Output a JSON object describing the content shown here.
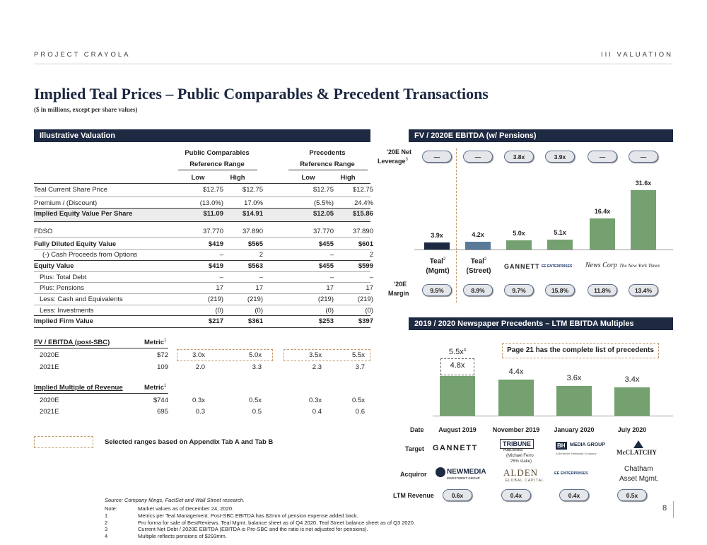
{
  "header": {
    "project": "PROJECT CRAYOLA",
    "section": "III VALUATION"
  },
  "title": "Implied Teal Prices – Public Comparables & Precedent Transactions",
  "subtitle": "($ in millions, except per share values)",
  "valuation": {
    "header": "Illustrative Valuation",
    "group_labels": {
      "public_1": "Public Comparables",
      "public_2": "Reference Range",
      "prec_1": "Precedents",
      "prec_2": "Reference Range"
    },
    "col_headers": [
      "Low",
      "High",
      "Low",
      "High"
    ],
    "rows": [
      {
        "label": "Teal Current Share Price",
        "vals": [
          "$12.75",
          "$12.75",
          "$12.75",
          "$12.75"
        ]
      },
      {
        "label": "Premium / (Discount)",
        "vals": [
          "(13.0%)",
          "17.0%",
          "(5.5%)",
          "24.4%"
        ]
      },
      {
        "label": "Implied Equity Value Per Share",
        "vals": [
          "$11.09",
          "$14.91",
          "$12.05",
          "$15.86"
        ]
      },
      {
        "label": "FDSO",
        "vals": [
          "37.770",
          "37.890",
          "37.770",
          "37.890"
        ]
      },
      {
        "label": "Fully Diluted Equity Value",
        "vals": [
          "$419",
          "$565",
          "$455",
          "$601"
        ]
      },
      {
        "label": "(-) Cash Proceeds from Options",
        "vals": [
          "–",
          "2",
          "–",
          "2"
        ]
      },
      {
        "label": "Equity Value",
        "vals": [
          "$419",
          "$563",
          "$455",
          "$599"
        ]
      },
      {
        "label": "Plus: Total Debt",
        "vals": [
          "–",
          "–",
          "–",
          "–"
        ]
      },
      {
        "label": "Plus: Pensions",
        "vals": [
          "17",
          "17",
          "17",
          "17"
        ]
      },
      {
        "label": "Less: Cash and Equivalents",
        "vals": [
          "(219)",
          "(219)",
          "(219)",
          "(219)"
        ]
      },
      {
        "label": "Less: Investments",
        "vals": [
          "(0)",
          "(0)",
          "(0)",
          "(0)"
        ]
      },
      {
        "label": "Implied Firm Value",
        "vals": [
          "$217",
          "$361",
          "$253",
          "$397"
        ]
      }
    ],
    "fv_ebitda": {
      "label": "FV / EBITDA (post-SBC)",
      "metric_label": "Metric",
      "sup": "1",
      "rows": [
        {
          "label": "2020E",
          "metric": "$72",
          "vals": [
            "3.0x",
            "5.0x",
            "3.5x",
            "5.5x"
          ]
        },
        {
          "label": "2021E",
          "metric": "109",
          "vals": [
            "2.0",
            "3.3",
            "2.3",
            "3.7"
          ]
        }
      ]
    },
    "mult_rev": {
      "label": "Implied Multiple of Revenue",
      "metric_label": "Metric",
      "sup": "1",
      "rows": [
        {
          "label": "2020E",
          "metric": "$744",
          "vals": [
            "0.3x",
            "0.5x",
            "0.3x",
            "0.5x"
          ]
        },
        {
          "label": "2021E",
          "metric": "695",
          "vals": [
            "0.3",
            "0.5",
            "0.4",
            "0.6"
          ]
        }
      ]
    },
    "legend_text": "Selected ranges based on Appendix Tab A and Tab B"
  },
  "fv_chart": {
    "header": "FV / 2020E EBITDA (w/ Pensions)",
    "leverage_label_1": "'20E Net",
    "leverage_label_2": "Leverage",
    "leverage_sup": "3",
    "leverage": [
      "—",
      "—",
      "3.8x",
      "3.9x",
      "—",
      "—"
    ],
    "margin_label_1": "'20E",
    "margin_label_2": "Margin",
    "margins": [
      "9.5%",
      "8.9%",
      "9.7%",
      "15.8%",
      "11.8%",
      "13.4%"
    ],
    "teal_mgmt_1": "Teal",
    "teal_mgmt_2": "(Mgmt)",
    "teal_street_1": "Teal",
    "teal_street_2": "(Street)",
    "teal_sup": "2",
    "logos": [
      "GANNETT",
      "EE ENTERPRISES",
      "News Corp",
      "The New York Times"
    ]
  },
  "prec_chart": {
    "header": "2019 / 2020 Newspaper Precedents – LTM EBITDA Multiples",
    "callout": "Page 21 has the complete list of precedents",
    "pension_label": "5.5x",
    "pension_sup": "4",
    "date_label": "Date",
    "target_label": "Target",
    "acquiror_label": "Acquiror",
    "ltm_label": "LTM Revenue",
    "ltm": [
      "0.6x",
      "0.4x",
      "0.4x",
      "0.5x"
    ],
    "targets": {
      "gannett": "GANNETT",
      "tribune": "TRIBUNE",
      "tribune_sub": "PUBLISHING",
      "tribune_note_1": "(Michael Ferro",
      "tribune_note_2": "25% stake)",
      "bh": "BH",
      "bh_text": "MEDIA GROUP",
      "bh_sub": "A Berkshire Hathaway Company",
      "mcclatchy": "McCLATCHY"
    },
    "acquirors": {
      "newmedia": "NEWMEDIA",
      "newmedia_sub": "INVESTMENT GROUP",
      "alden": "ALDEN",
      "alden_sub": "GLOBAL CAPITAL",
      "lee": "EE ENTERPRISES",
      "chatham_1": "Chatham",
      "chatham_2": "Asset Mgmt."
    }
  },
  "chart_data": [
    {
      "type": "bar",
      "title": "FV / 2020E EBITDA (w/ Pensions)",
      "categories": [
        "Teal (Mgmt)",
        "Teal (Street)",
        "Gannett",
        "Lee Enterprises",
        "News Corp",
        "The New York Times"
      ],
      "values": [
        3.9,
        4.2,
        5.0,
        5.1,
        16.4,
        31.6
      ],
      "labels": [
        "3.9x",
        "4.2x",
        "5.0x",
        "5.1x",
        "16.4x",
        "31.6x"
      ],
      "colors": [
        "#1e2a42",
        "#5a7a9a",
        "#74a16f",
        "#74a16f",
        "#74a16f",
        "#74a16f"
      ],
      "ylim": [
        0,
        34
      ]
    },
    {
      "type": "bar",
      "title": "2019 / 2020 Newspaper Precedents – LTM EBITDA Multiples",
      "categories": [
        "August 2019",
        "November 2019",
        "January 2020",
        "July 2020"
      ],
      "values": [
        4.8,
        4.4,
        3.6,
        3.4
      ],
      "labels": [
        "4.8x",
        "4.4x",
        "3.6x",
        "3.4x"
      ],
      "color": "#74a16f",
      "ylim": [
        0,
        6
      ]
    }
  ],
  "source": "Source: Company filings, FactSet and Wall Street research.",
  "notes": [
    {
      "k": "Note:",
      "t": "Market values as of December 24, 2020."
    },
    {
      "k": "1",
      "t": "Metrics per Teal Management. Post-SBC EBITDA has $2mm of pension expense added back."
    },
    {
      "k": "2",
      "t": "Pro forma for sale of BestReviews. Teal Mgmt. balance sheet as of Q4 2020. Teal Street balance sheet as of Q3 2020."
    },
    {
      "k": "3",
      "t": "Current Net Debt / 2020E EBITDA (EBITDA is Pre-SBC and the ratio is not adjusted for pensions)."
    },
    {
      "k": "4",
      "t": "Multiple reflects pensions of $293mm."
    }
  ],
  "page_number": "8"
}
